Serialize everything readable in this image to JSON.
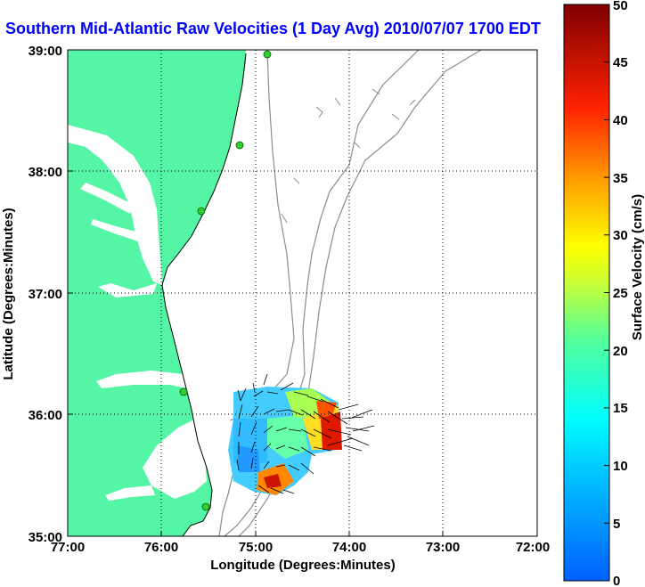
{
  "title": "Southern Mid-Atlantic Raw Velocities (1 Day Avg) 2010/07/07 1700 EDT",
  "map": {
    "xlabel": "Longitude (Degrees:Minutes)",
    "ylabel": "Latitude (Degrees:Minutes)",
    "x_ticks": [
      "77:00",
      "76:00",
      "75:00",
      "74:00",
      "73:00",
      "72:00"
    ],
    "y_ticks": [
      "39:00",
      "38:00",
      "37:00",
      "36:00",
      "35:00"
    ],
    "grid": "dotted",
    "colors": {
      "land": "#55f5a6",
      "water": "#ffffff",
      "bathymetry_contour": "#8c8c8c",
      "coastline": "#000000",
      "stations": "#33cc33"
    }
  },
  "colorbar": {
    "label": "Surface Velocity (cm/s)",
    "ticks": [
      "0",
      "5",
      "10",
      "15",
      "20",
      "25",
      "30",
      "35",
      "40",
      "45",
      "50"
    ],
    "colors": [
      "#0000ff",
      "#00ffff",
      "#ffff00",
      "#ff0000",
      "#800000"
    ]
  }
}
